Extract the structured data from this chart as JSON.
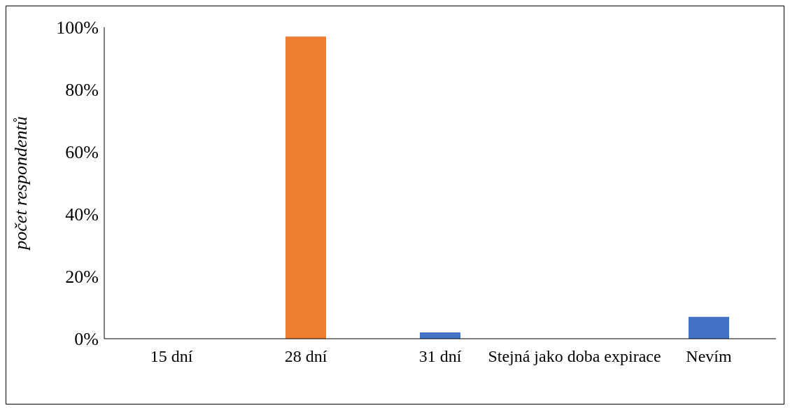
{
  "chart_data": {
    "type": "bar",
    "ylabel": "počet respondentů",
    "categories": [
      "15 dní",
      "28 dní",
      "31 dní",
      "Stejná jako doba expirace",
      "Nevím"
    ],
    "values": [
      0,
      97,
      2,
      0,
      7
    ],
    "colors": [
      "#4472c4",
      "#ed7d31",
      "#4472c4",
      "#4472c4",
      "#4472c4"
    ],
    "ylim": [
      0,
      100
    ],
    "yticks": [
      {
        "value": 0,
        "label": "0%"
      },
      {
        "value": 20,
        "label": "20%"
      },
      {
        "value": 40,
        "label": "40%"
      },
      {
        "value": 60,
        "label": "60%"
      },
      {
        "value": 80,
        "label": "80%"
      },
      {
        "value": 100,
        "label": "100%"
      }
    ],
    "grid": false,
    "legend": false
  }
}
